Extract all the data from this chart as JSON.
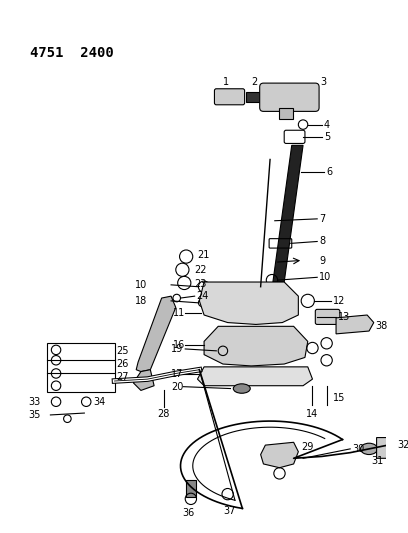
{
  "title": "4751  2400",
  "bg_color": "#ffffff",
  "line_color": "#000000",
  "title_fontsize": 10,
  "label_fontsize": 7,
  "figsize": [
    4.08,
    5.33
  ],
  "dpi": 100
}
